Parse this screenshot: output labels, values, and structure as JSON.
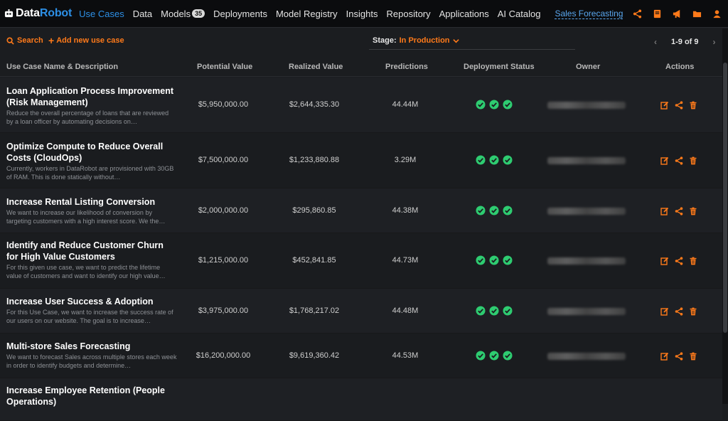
{
  "nav": {
    "brand_a": "Data",
    "brand_b": "Robot",
    "items": [
      {
        "label": "Use Cases",
        "active": true
      },
      {
        "label": "Data"
      },
      {
        "label": "Models",
        "badge": "35"
      },
      {
        "label": "Deployments"
      },
      {
        "label": "Model Registry"
      },
      {
        "label": "Insights"
      },
      {
        "label": "Repository"
      },
      {
        "label": "Applications"
      },
      {
        "label": "AI Catalog"
      }
    ],
    "project": "Sales Forecasting",
    "icons": [
      "share-icon",
      "book-icon",
      "megaphone-icon",
      "folder-icon",
      "user-icon"
    ],
    "accent": "#ff7a1a",
    "link_color": "#2d8fe5"
  },
  "toolbar": {
    "search_label": "Search",
    "add_label": "Add new use case",
    "stage_label": "Stage:",
    "stage_value": "In Production",
    "pager_text": "1-9 of 9"
  },
  "table": {
    "headers": {
      "name": "Use Case Name & Description",
      "potential": "Potential Value",
      "realized": "Realized Value",
      "predictions": "Predictions",
      "deployment": "Deployment Status",
      "owner": "Owner",
      "actions": "Actions"
    },
    "rows": [
      {
        "title": "Loan Application Process Improvement (Risk Management)",
        "desc": "Reduce the overall percentage of loans that are reviewed by a loan officer by automating decisions on…",
        "potential": "$5,950,000.00",
        "realized": "$2,644,335.30",
        "predictions": "44.44M"
      },
      {
        "title": "Optimize Compute to Reduce Overall Costs (CloudOps)",
        "desc": "Currently, workers in DataRobot are provisioned with 30GB of RAM. This is done statically without…",
        "potential": "$7,500,000.00",
        "realized": "$1,233,880.88",
        "predictions": "3.29M"
      },
      {
        "title": "Increase Rental Listing Conversion",
        "desc": "We want to increase our likelihood of conversion by targeting customers with a high interest score. We the…",
        "potential": "$2,000,000.00",
        "realized": "$295,860.85",
        "predictions": "44.38M"
      },
      {
        "title": "Identify and Reduce Customer Churn for High Value Customers",
        "desc": "For this given use case, we want to predict the lifetime value of customers and want to identify our high value…",
        "potential": "$1,215,000.00",
        "realized": "$452,841.85",
        "predictions": "44.73M"
      },
      {
        "title": "Increase User Success & Adoption",
        "desc": "For this Use Case, we want to increase the success rate of our users on our website. The goal is to increase…",
        "potential": "$3,975,000.00",
        "realized": "$1,768,217.02",
        "predictions": "44.48M"
      },
      {
        "title": "Multi-store Sales Forecasting",
        "desc": "We want to forecast Sales across multiple stores each week in order to identify budgets and determine…",
        "potential": "$16,200,000.00",
        "realized": "$9,619,360.42",
        "predictions": "44.53M"
      },
      {
        "title": "Increase Employee Retention (People Operations)",
        "desc": "",
        "potential": "",
        "realized": "",
        "predictions": ""
      }
    ],
    "status_color": "#2ecc71"
  }
}
